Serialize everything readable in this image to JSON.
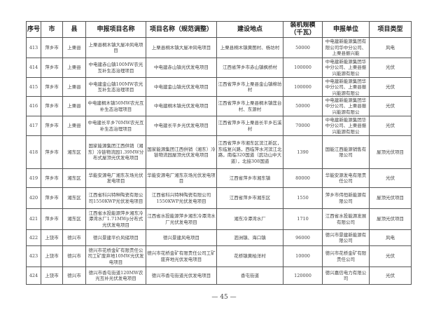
{
  "table": {
    "headers": [
      "序号",
      "市",
      "县",
      "申报项目名称",
      "项目名称（规范调整）",
      "建设地点",
      "装机规模（千瓦）",
      "申报单位",
      "项目类型"
    ],
    "rows": [
      [
        "413",
        "萍乡市",
        "上栗县",
        "上栗县桐木镇大屋冲风电项目",
        "上栗县桐木镇大屋冲风电项目",
        "上栗县桐木镇黄图村、杨坊村",
        "50000",
        "中电建新能源集团有限公司华中分公司、上栗县振兴能",
        "风电"
      ],
      [
        "414",
        "萍乡市",
        "上栗县",
        "中电建赤山镇100MW农光互补生态治理项目",
        "中电建赤山镇光伏发电项目",
        "江西省萍乡市赤山镇枫桥村",
        "100000",
        "中电建新能源集团华中分公司、上栗县振兴能源有限公",
        "光伏"
      ],
      [
        "415",
        "萍乡市",
        "上栗县",
        "中电建金山镇100MW农光互补生态治理项目",
        "中电建金山镇光伏发电项目",
        "江西省萍乡市上栗县金山镇棉坊村",
        "100000",
        "中电建新能源集团华中分公司、上栗县振兴能源有限公",
        "光伏"
      ],
      [
        "416",
        "萍乡市",
        "上栗县",
        "中电建桐木镇50MW农光互补生态治理项目",
        "中电建桐木镇光伏发电项目",
        "江西省萍乡市上栗县桐木镇莲台村、东源村",
        "50000",
        "中电建新能源集团华中分公司、上栗县振兴能源有限公",
        "光伏"
      ],
      [
        "417",
        "萍乡市",
        "上栗县",
        "中电建长平乡70MW农光互补生态治理项目",
        "中电建长平乡光伏发电项目",
        "江西省萍乡市上栗县长平乡石溪村",
        "70000",
        "中电建新能源集团华中分公司、上栗县振兴能源有限公",
        "光伏"
      ],
      [
        "418",
        "萍乡市",
        "湘东区",
        "国家能源集团江西供销（湘东）冷链物流园1.39MW分布式屋顶光伏发电项目",
        "国家能源集团江西供销（湘东）冷链物流园屋顶光伏发电项目",
        "江西省萍乡市湘东区滨江新区，东临复兴路，西临萍水河滨江北路，南临320国道（武功山中大道），北接308国道",
        "1390",
        "国能江西能源销售有限公司",
        "屋顶光伏项目"
      ],
      [
        "419",
        "萍乡市",
        "湘东区",
        "华能安源电厂湘东灰场光伏发电项目",
        "华能安源电厂湘东灰场光伏发电项目",
        "江西省萍乡市湘东镇",
        "80000",
        "华能安源发电有限责任公司",
        "光伏"
      ],
      [
        "420",
        "萍乡市",
        "湘东区",
        "江西省科兴特种陶瓷有限公司1550KWP光伏发电项目",
        "江西省科兴特种陶瓷有限公司1550KWP光伏发电项目",
        "江西省萍乡市湘东区",
        "1550",
        "萍乡市伟恒新能源有限公司",
        "屋顶光伏项目"
      ],
      [
        "421",
        "萍乡市",
        "湘东区",
        "江西省水投能源萍乡湘东冷潭湾水厂1.71MWp分布式光伏发电项目",
        "江西省水投能源萍乡湘东冷潭湾水厂光伏发电项目",
        "湘东冷潭湾水厂",
        "1710",
        "江西省水投能源发展有限公司",
        "屋顶光伏项目"
      ],
      [
        "422",
        "上饶市",
        "德兴市",
        "德兴景建平价风储项目",
        "德兴景建风电项目",
        "泗洲镇、海口镇",
        "96000",
        "德兴市景建新能源有限公司",
        "风电"
      ],
      [
        "423",
        "上饶市",
        "德兴市",
        "德兴市花桥金矿有限责任公司工矿废弃地10MW光伏发电项目",
        "德兴市花桥金矿有限责任公司工矿废弃地光伏发电项目",
        "花桥镇黄柏洋村",
        "10000",
        "德兴市花桥金矿有限责任公司",
        "光伏"
      ],
      [
        "424",
        "上饶市",
        "德兴市",
        "德兴市香屯街道120MW农光互补光伏发电项目",
        "德兴市香屯街道光伏发电项目",
        "香屯街道",
        "120000",
        "德兴嘉信电力有限公司",
        "光伏"
      ]
    ]
  },
  "footer": {
    "page_number": "— 45 —"
  }
}
